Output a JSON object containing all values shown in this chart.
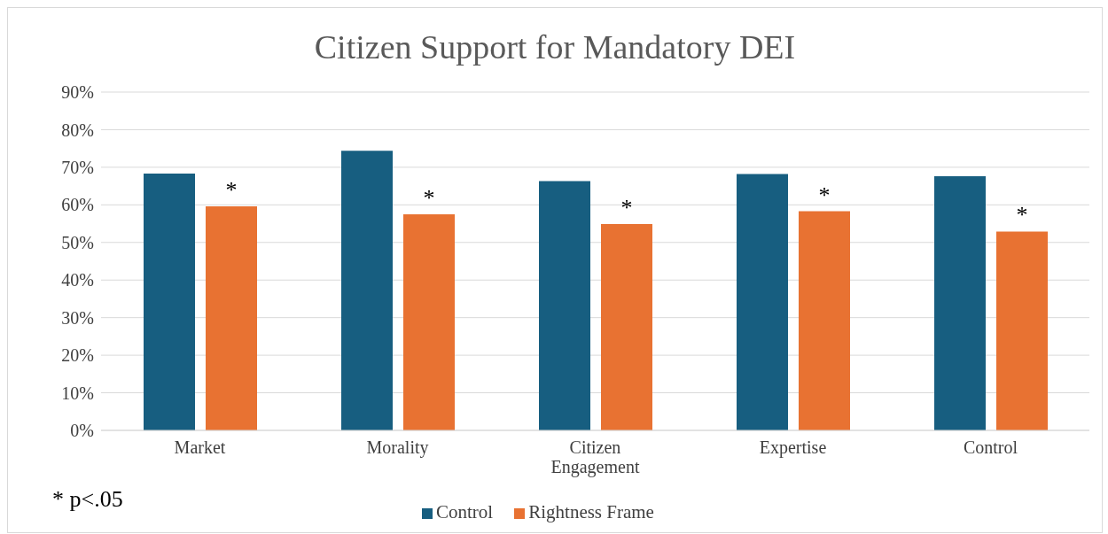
{
  "chart_data": {
    "type": "bar",
    "title": "Citizen Support for Mandatory DEI",
    "categories": [
      "Market",
      "Morality",
      "Citizen Engagement",
      "Expertise",
      "Control"
    ],
    "series": [
      {
        "name": "Control",
        "color": "#175e80",
        "values": [
          68.3,
          74.4,
          66.3,
          68.2,
          67.6
        ]
      },
      {
        "name": "Rightness Frame",
        "color": "#e87232",
        "values": [
          59.6,
          57.5,
          54.9,
          58.3,
          52.9
        ]
      }
    ],
    "ylim": [
      0,
      90
    ],
    "yticks": [
      {
        "value": 0,
        "label": "0%"
      },
      {
        "value": 10,
        "label": "10%"
      },
      {
        "value": 20,
        "label": "20%"
      },
      {
        "value": 30,
        "label": "30%"
      },
      {
        "value": 40,
        "label": "40%"
      },
      {
        "value": 50,
        "label": "50%"
      },
      {
        "value": 60,
        "label": "60%"
      },
      {
        "value": 70,
        "label": "70%"
      },
      {
        "value": 80,
        "label": "80%"
      },
      {
        "value": 90,
        "label": "90%"
      }
    ],
    "grid": "y",
    "legend": "bottom",
    "annotations": [
      "*",
      "*",
      "*",
      "*",
      "*",
      "* p<.05"
    ]
  }
}
